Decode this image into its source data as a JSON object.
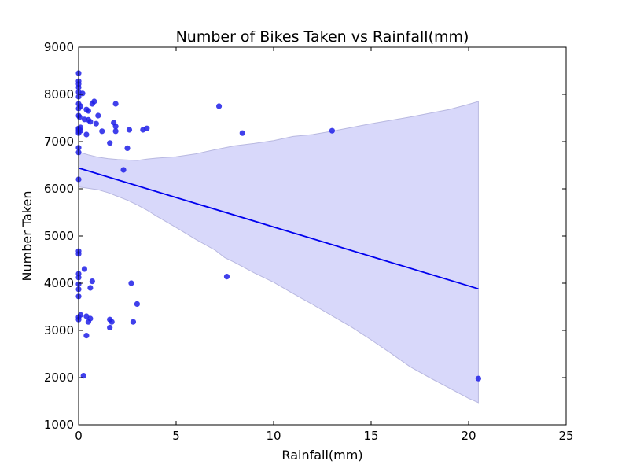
{
  "chart_data": {
    "type": "scatter",
    "title": "Number of Bikes Taken vs Rainfall(mm)",
    "xlabel": "Rainfall(mm)",
    "ylabel": "Number Taken",
    "xlim": [
      0,
      25
    ],
    "ylim": [
      1000,
      9000
    ],
    "xticks": [
      0,
      5,
      10,
      15,
      20,
      25
    ],
    "yticks": [
      1000,
      2000,
      3000,
      4000,
      5000,
      6000,
      7000,
      8000,
      9000
    ],
    "grid": false,
    "legend": "none",
    "colors": {
      "points": "#1f1fe8",
      "regression_line": "#0000ee",
      "confidence_band": "#d8d8fa",
      "confidence_band_edge": "#b8b8e0"
    },
    "series": [
      {
        "points": [
          [
            0,
            8450
          ],
          [
            0,
            8280
          ],
          [
            0,
            8220
          ],
          [
            0,
            8150
          ],
          [
            0,
            8050
          ],
          [
            0,
            7950
          ],
          [
            0,
            7800
          ],
          [
            0,
            7700
          ],
          [
            0,
            7550
          ],
          [
            0,
            7280
          ],
          [
            0,
            7250
          ],
          [
            0,
            7220
          ],
          [
            0,
            7180
          ],
          [
            0,
            6870
          ],
          [
            0,
            6770
          ],
          [
            0,
            6200
          ],
          [
            0,
            4680
          ],
          [
            0,
            4620
          ],
          [
            0,
            4200
          ],
          [
            0,
            4120
          ],
          [
            0,
            3980
          ],
          [
            0,
            3870
          ],
          [
            0,
            3720
          ],
          [
            0,
            3280
          ],
          [
            0,
            3230
          ],
          [
            0.05,
            7520
          ],
          [
            0.1,
            7750
          ],
          [
            0.1,
            7300
          ],
          [
            0.1,
            7230
          ],
          [
            0.1,
            3330
          ],
          [
            0.2,
            8020
          ],
          [
            0.25,
            2040
          ],
          [
            0.3,
            7470
          ],
          [
            0.3,
            4300
          ],
          [
            0.4,
            7680
          ],
          [
            0.4,
            7150
          ],
          [
            0.4,
            3300
          ],
          [
            0.4,
            2890
          ],
          [
            0.5,
            7650
          ],
          [
            0.5,
            7460
          ],
          [
            0.5,
            3180
          ],
          [
            0.6,
            7420
          ],
          [
            0.6,
            3250
          ],
          [
            0.6,
            3900
          ],
          [
            0.7,
            7800
          ],
          [
            0.7,
            4040
          ],
          [
            0.8,
            7850
          ],
          [
            0.9,
            7380
          ],
          [
            1.0,
            7550
          ],
          [
            1.2,
            7220
          ],
          [
            1.6,
            6970
          ],
          [
            1.6,
            3230
          ],
          [
            1.6,
            3060
          ],
          [
            1.7,
            3180
          ],
          [
            1.8,
            7400
          ],
          [
            1.9,
            7800
          ],
          [
            1.9,
            7320
          ],
          [
            1.9,
            7220
          ],
          [
            2.3,
            6400
          ],
          [
            2.5,
            6860
          ],
          [
            2.6,
            7250
          ],
          [
            2.7,
            4000
          ],
          [
            2.8,
            3180
          ],
          [
            3.0,
            3560
          ],
          [
            3.3,
            7250
          ],
          [
            3.5,
            7280
          ],
          [
            7.2,
            7750
          ],
          [
            7.6,
            4140
          ],
          [
            8.4,
            7180
          ],
          [
            13.0,
            7230
          ],
          [
            20.5,
            1980
          ]
        ]
      }
    ],
    "regression": {
      "line": [
        [
          0,
          6440
        ],
        [
          20.5,
          3880
        ]
      ],
      "ci_upper": [
        [
          0,
          6780
        ],
        [
          0.5,
          6720
        ],
        [
          1.0,
          6670
        ],
        [
          1.5,
          6640
        ],
        [
          2.0,
          6620
        ],
        [
          2.5,
          6610
        ],
        [
          3.0,
          6600
        ],
        [
          3.5,
          6630
        ],
        [
          4.0,
          6650
        ],
        [
          5.0,
          6680
        ],
        [
          6.0,
          6740
        ],
        [
          7.0,
          6830
        ],
        [
          8.0,
          6910
        ],
        [
          9.0,
          6960
        ],
        [
          10.0,
          7020
        ],
        [
          11.0,
          7110
        ],
        [
          12.0,
          7150
        ],
        [
          13.0,
          7220
        ],
        [
          14.0,
          7300
        ],
        [
          15.0,
          7380
        ],
        [
          16.0,
          7450
        ],
        [
          17.0,
          7520
        ],
        [
          18.0,
          7600
        ],
        [
          19.0,
          7680
        ],
        [
          20.0,
          7790
        ],
        [
          20.5,
          7850
        ]
      ],
      "ci_lower": [
        [
          0,
          6040
        ],
        [
          0.5,
          6010
        ],
        [
          1.0,
          5980
        ],
        [
          1.5,
          5920
        ],
        [
          2.0,
          5840
        ],
        [
          2.5,
          5760
        ],
        [
          3.0,
          5660
        ],
        [
          3.5,
          5550
        ],
        [
          4.0,
          5420
        ],
        [
          5.0,
          5180
        ],
        [
          6.0,
          4930
        ],
        [
          7.0,
          4700
        ],
        [
          7.5,
          4540
        ],
        [
          8.0,
          4440
        ],
        [
          9.0,
          4220
        ],
        [
          10.0,
          4020
        ],
        [
          11.0,
          3780
        ],
        [
          12.0,
          3550
        ],
        [
          13.0,
          3310
        ],
        [
          14.0,
          3070
        ],
        [
          15.0,
          2800
        ],
        [
          16.0,
          2520
        ],
        [
          17.0,
          2230
        ],
        [
          18.0,
          2000
        ],
        [
          19.0,
          1780
        ],
        [
          20.0,
          1560
        ],
        [
          20.5,
          1470
        ]
      ]
    }
  }
}
